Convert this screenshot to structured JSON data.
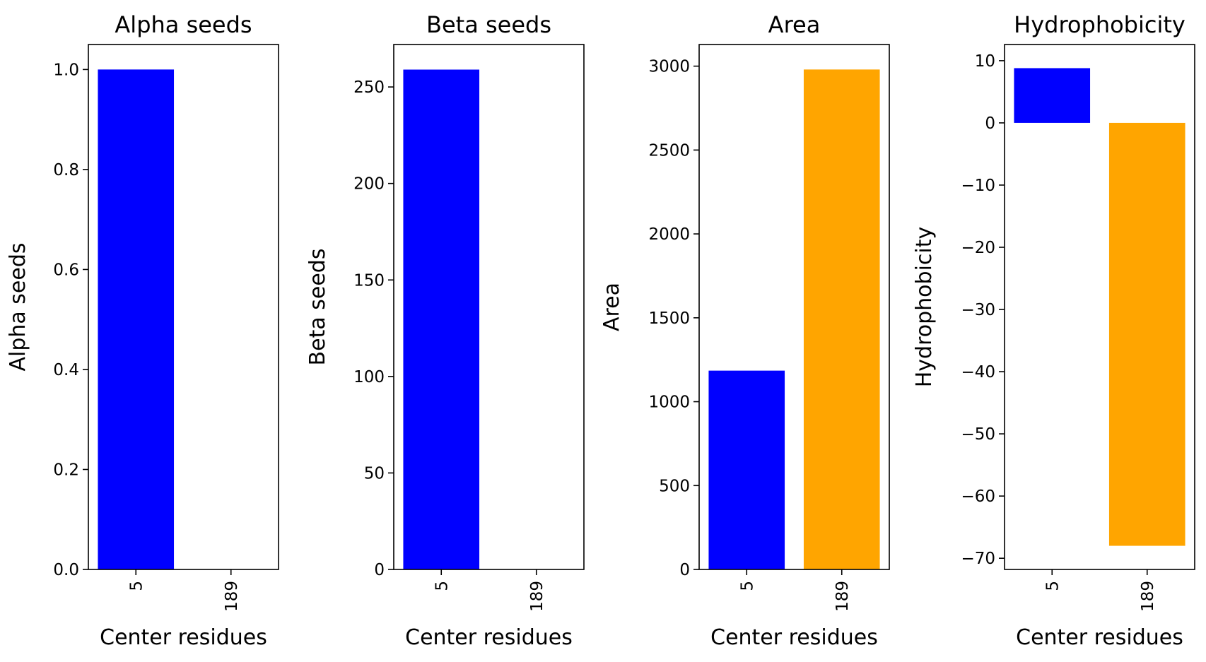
{
  "colors": {
    "series_5": "#0000ff",
    "series_189": "#ffa500"
  },
  "chart_data": [
    {
      "type": "bar",
      "title": "Alpha seeds",
      "xlabel": "Center residues",
      "ylabel": "Alpha seeds",
      "categories": [
        "5",
        "189"
      ],
      "values": [
        1.0,
        0
      ],
      "ylim": [
        0,
        1.05
      ],
      "yticks": [
        0.0,
        0.2,
        0.4,
        0.6,
        0.8,
        1.0
      ],
      "ytick_labels": [
        "0.0",
        "0.2",
        "0.4",
        "0.6",
        "0.8",
        "1.0"
      ],
      "grid": false
    },
    {
      "type": "bar",
      "title": "Beta seeds",
      "xlabel": "Center residues",
      "ylabel": "Beta seeds",
      "categories": [
        "5",
        "189"
      ],
      "values": [
        259,
        0
      ],
      "ylim": [
        0,
        272
      ],
      "yticks": [
        0,
        50,
        100,
        150,
        200,
        250
      ],
      "ytick_labels": [
        "0",
        "50",
        "100",
        "150",
        "200",
        "250"
      ],
      "grid": false
    },
    {
      "type": "bar",
      "title": "Area",
      "xlabel": "Center residues",
      "ylabel": "Area",
      "categories": [
        "5",
        "189"
      ],
      "values": [
        1185,
        2980
      ],
      "ylim": [
        0,
        3129
      ],
      "yticks": [
        0,
        500,
        1000,
        1500,
        2000,
        2500,
        3000
      ],
      "ytick_labels": [
        "0",
        "500",
        "1000",
        "1500",
        "2000",
        "2500",
        "3000"
      ],
      "grid": false
    },
    {
      "type": "bar",
      "title": "Hydrophobicity",
      "xlabel": "Center residues",
      "ylabel": "Hydrophobicity",
      "categories": [
        "5",
        "189"
      ],
      "values": [
        8.8,
        -68
      ],
      "ylim": [
        -71.8,
        12.6
      ],
      "yticks": [
        10,
        0,
        -10,
        -20,
        -30,
        -40,
        -50,
        -60,
        -70
      ],
      "ytick_labels": [
        "10",
        "0",
        "−10",
        "−20",
        "−30",
        "−40",
        "−50",
        "−60",
        "−70"
      ],
      "grid": false
    }
  ]
}
